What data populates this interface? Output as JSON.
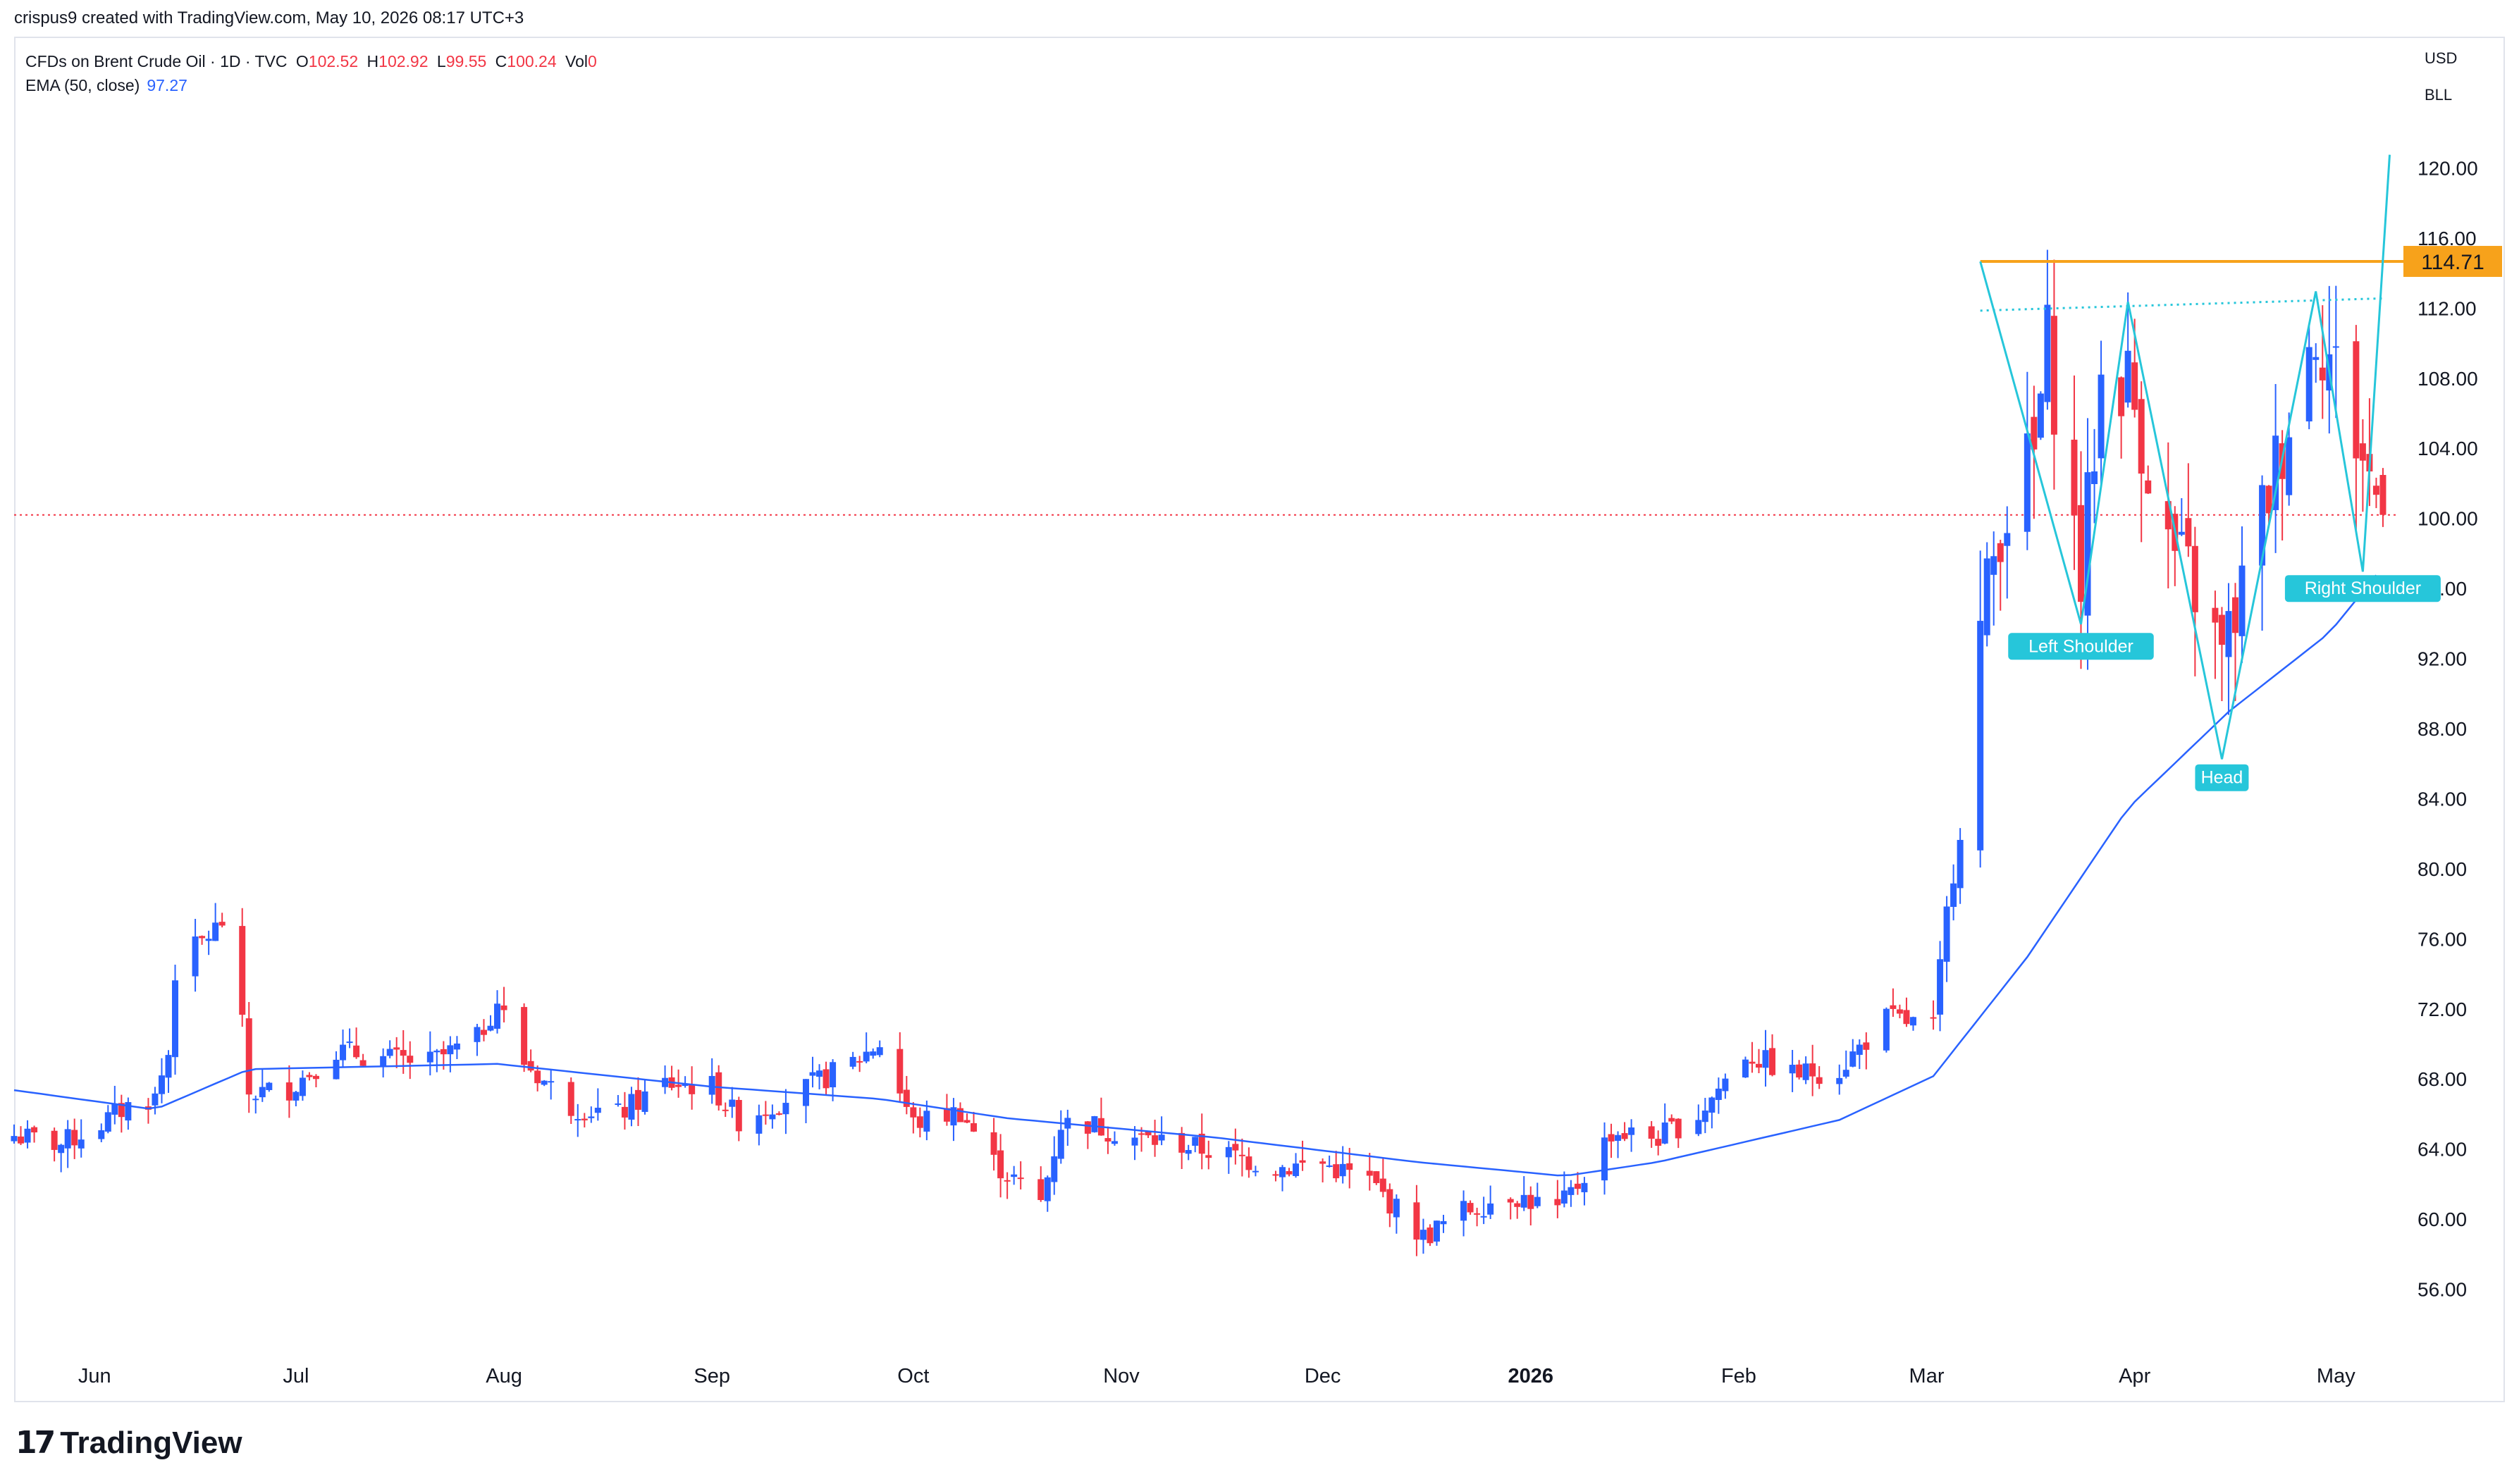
{
  "credit": "crispus9 created with TradingView.com, May 10, 2026 08:17 UTC+3",
  "legend": {
    "symbol": "CFDs on Brent Crude Oil · 1D · TVC",
    "o_key": "O",
    "o_val": "102.52",
    "h_key": "H",
    "h_val": "102.92",
    "l_key": "L",
    "l_val": "99.55",
    "c_key": "C",
    "c_val": "100.24",
    "vol_key": "Vol",
    "vol_val": "0",
    "ema_label": "EMA (50, close)",
    "ema_val": "97.27"
  },
  "currency": "USD",
  "unit": "BLL",
  "brand": "TradingView",
  "colors": {
    "up": "#2962ff",
    "down": "#f23645",
    "ema": "#2962ff",
    "pattern": "#26c6da",
    "resistance": "#f7a21b",
    "price_line": "#f23645",
    "neckline": "#26c6da"
  },
  "chart_data": {
    "type": "candlestick",
    "title": "CFDs on Brent Crude Oil · 1D · TVC",
    "ylim": [
      52,
      124
    ],
    "y_ticks": [
      "56.00",
      "60.00",
      "64.00",
      "68.00",
      "72.00",
      "76.00",
      "80.00",
      "84.00",
      "88.00",
      "92.00",
      "96.00",
      "100.00",
      "104.00",
      "108.00",
      "112.00",
      "116.00",
      "120.00"
    ],
    "x_ticks": [
      "Jun",
      "Jul",
      "Aug",
      "Sep",
      "Oct",
      "Nov",
      "Dec",
      "2026",
      "Feb",
      "Mar",
      "Apr",
      "May"
    ],
    "x_range": [
      "2025-05-20",
      "2026-05-10"
    ],
    "last_price": 100.24,
    "resistance": {
      "value": 114.71,
      "label": "114.71",
      "start": "2026-03-09"
    },
    "neckline": {
      "start": "2026-03-09",
      "end": "2026-05-08",
      "y_start": 111.9,
      "y_end": 112.6
    },
    "pattern_labels": [
      {
        "text": "Left Shoulder",
        "date": "2026-03-24",
        "value": 93.5
      },
      {
        "text": "Head",
        "date": "2026-04-14",
        "value": 86.0
      },
      {
        "text": "Right Shoulder",
        "date": "2026-05-05",
        "value": 96.8
      }
    ],
    "pattern_path": [
      [
        "2026-03-09",
        114.7
      ],
      [
        "2026-03-24",
        94.0
      ],
      [
        "2026-03-31",
        112.4
      ],
      [
        "2026-04-14",
        86.3
      ],
      [
        "2026-04-28",
        113.0
      ],
      [
        "2026-05-05",
        97.0
      ],
      [
        "2026-05-09",
        120.8
      ]
    ],
    "price_anchors": [
      [
        "2025-05-20",
        64.8
      ],
      [
        "2025-05-27",
        64.3
      ],
      [
        "2025-06-02",
        65.5
      ],
      [
        "2025-06-06",
        66.5
      ],
      [
        "2025-06-10",
        67.0
      ],
      [
        "2025-06-12",
        69.5
      ],
      [
        "2025-06-13",
        74.2
      ],
      [
        "2025-06-16",
        75.5
      ],
      [
        "2025-06-20",
        77.0
      ],
      [
        "2025-06-23",
        71.0
      ],
      [
        "2025-06-24",
        67.2
      ],
      [
        "2025-06-30",
        67.5
      ],
      [
        "2025-07-07",
        69.7
      ],
      [
        "2025-07-14",
        69.2
      ],
      [
        "2025-07-21",
        69.0
      ],
      [
        "2025-07-28",
        70.3
      ],
      [
        "2025-07-31",
        72.5
      ],
      [
        "2025-08-04",
        69.0
      ],
      [
        "2025-08-11",
        66.5
      ],
      [
        "2025-08-18",
        66.0
      ],
      [
        "2025-08-25",
        67.8
      ],
      [
        "2025-09-01",
        67.6
      ],
      [
        "2025-09-05",
        65.7
      ],
      [
        "2025-09-15",
        67.5
      ],
      [
        "2025-09-22",
        69.0
      ],
      [
        "2025-09-26",
        70.1
      ],
      [
        "2025-10-01",
        65.5
      ],
      [
        "2025-10-08",
        66.2
      ],
      [
        "2025-10-13",
        63.3
      ],
      [
        "2025-10-20",
        61.0
      ],
      [
        "2025-10-23",
        65.5
      ],
      [
        "2025-10-27",
        65.5
      ],
      [
        "2025-11-03",
        64.7
      ],
      [
        "2025-11-10",
        64.3
      ],
      [
        "2025-11-17",
        63.7
      ],
      [
        "2025-11-24",
        63.0
      ],
      [
        "2025-12-01",
        63.2
      ],
      [
        "2025-12-08",
        62.2
      ],
      [
        "2025-12-16",
        59.0
      ],
      [
        "2025-12-22",
        60.5
      ],
      [
        "2025-12-29",
        61.5
      ],
      [
        "2026-01-05",
        60.5
      ],
      [
        "2026-01-08",
        62.0
      ],
      [
        "2026-01-13",
        65.0
      ],
      [
        "2026-01-20",
        64.7
      ],
      [
        "2026-01-26",
        66.0
      ],
      [
        "2026-02-02",
        69.5
      ],
      [
        "2026-02-09",
        68.3
      ],
      [
        "2026-02-16",
        68.6
      ],
      [
        "2026-02-23",
        71.5
      ],
      [
        "2026-03-02",
        71.0
      ],
      [
        "2026-03-04",
        77.5
      ],
      [
        "2026-03-06",
        82.3
      ],
      [
        "2026-03-09",
        93.5
      ],
      [
        "2026-03-12",
        100.0
      ],
      [
        "2026-03-17",
        103.5
      ],
      [
        "2026-03-19",
        110.0
      ],
      [
        "2026-03-24",
        96.5
      ],
      [
        "2026-03-27",
        108.0
      ],
      [
        "2026-03-31",
        108.0
      ],
      [
        "2026-04-06",
        98.5
      ],
      [
        "2026-04-10",
        96.0
      ],
      [
        "2026-04-14",
        92.0
      ],
      [
        "2026-04-17",
        96.0
      ],
      [
        "2026-04-23",
        104.5
      ],
      [
        "2026-04-28",
        111.0
      ],
      [
        "2026-05-01",
        108.5
      ],
      [
        "2026-05-05",
        103.5
      ],
      [
        "2026-05-08",
        100.24
      ]
    ],
    "ema_anchors": [
      [
        "2025-05-20",
        67.4
      ],
      [
        "2025-06-10",
        66.3
      ],
      [
        "2025-06-24",
        68.6
      ],
      [
        "2025-07-31",
        68.9
      ],
      [
        "2025-09-01",
        67.6
      ],
      [
        "2025-09-26",
        66.9
      ],
      [
        "2025-10-15",
        65.8
      ],
      [
        "2025-11-15",
        64.7
      ],
      [
        "2025-12-15",
        63.3
      ],
      [
        "2026-01-06",
        62.5
      ],
      [
        "2026-01-20",
        63.3
      ],
      [
        "2026-02-16",
        65.7
      ],
      [
        "2026-03-02",
        68.2
      ],
      [
        "2026-03-16",
        75.0
      ],
      [
        "2026-03-31",
        83.5
      ],
      [
        "2026-04-15",
        89.0
      ],
      [
        "2026-04-30",
        93.5
      ],
      [
        "2026-05-08",
        97.27
      ]
    ]
  }
}
